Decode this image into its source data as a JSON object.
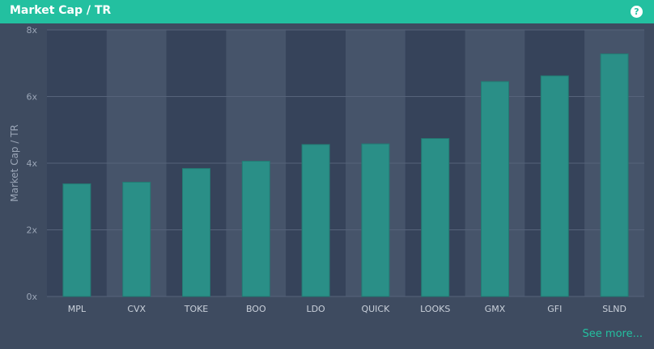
{
  "header": {
    "title": "Market Cap / TR",
    "help_icon": "help-circle-icon"
  },
  "footer": {
    "see_more": "See more..."
  },
  "colors": {
    "header": "#23c0a0",
    "background": "#3e4b60",
    "band_dark": "#36435a",
    "band_light": "#46546a",
    "bar": "#2a8f87",
    "accent": "#23c0a0"
  },
  "chart_data": {
    "type": "bar",
    "title": "",
    "xlabel": "",
    "ylabel": "Market Cap / TR",
    "categories": [
      "MPL",
      "CVX",
      "TOKE",
      "BOO",
      "LDO",
      "QUICK",
      "LOOKS",
      "GMX",
      "GFI",
      "SLND"
    ],
    "values": [
      3.38,
      3.43,
      3.84,
      4.06,
      4.56,
      4.58,
      4.74,
      6.45,
      6.62,
      7.28
    ],
    "ylim": [
      0,
      8
    ],
    "yticks": [
      0,
      2,
      4,
      6,
      8
    ],
    "ytick_labels": [
      "0x",
      "2x",
      "4x",
      "6x",
      "8x"
    ],
    "grid": true,
    "legend": "none"
  }
}
